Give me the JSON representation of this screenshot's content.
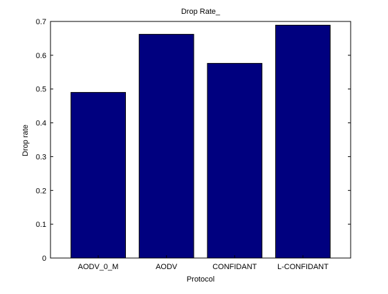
{
  "chart_data": {
    "type": "bar",
    "title": "Drop Rate_",
    "xlabel": "Protocol",
    "ylabel": "Drop rate",
    "categories": [
      "AODV_0_M",
      "AODV",
      "CONFIDANT",
      "L-CONFIDANT"
    ],
    "values": [
      0.49,
      0.662,
      0.576,
      0.689
    ],
    "ylim": [
      0,
      0.7
    ],
    "yticks": [
      "0",
      "0.1",
      "0.2",
      "0.3",
      "0.4",
      "0.5",
      "0.6",
      "0.7"
    ],
    "grid": false,
    "legend": "none",
    "colors": {
      "bar_fill": "#00007f",
      "bar_stroke": "#000000",
      "axes": "#000000",
      "background": "#ffffff"
    }
  }
}
